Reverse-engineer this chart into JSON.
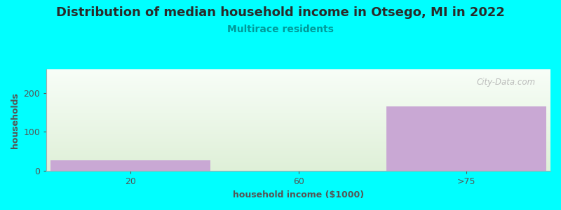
{
  "title": "Distribution of median household income in Otsego, MI in 2022",
  "subtitle": "Multirace residents",
  "categories": [
    "20",
    "60",
    ">75"
  ],
  "values": [
    28,
    0,
    165
  ],
  "bar_color": "#c9a8d4",
  "bar_edge_color": "#b898c8",
  "bg_color": "#00ffff",
  "plot_bg_color_top": "#f8fef8",
  "plot_bg_color_bottom": "#dff0d8",
  "title_color": "#2a2a2a",
  "subtitle_color": "#009999",
  "axis_label_color": "#555555",
  "tick_label_color": "#555555",
  "xlabel": "household income ($1000)",
  "ylabel": "households",
  "ylim": [
    0,
    260
  ],
  "yticks": [
    0,
    100,
    200
  ],
  "watermark": "City-Data.com",
  "title_fontsize": 13,
  "subtitle_fontsize": 10,
  "label_fontsize": 9
}
